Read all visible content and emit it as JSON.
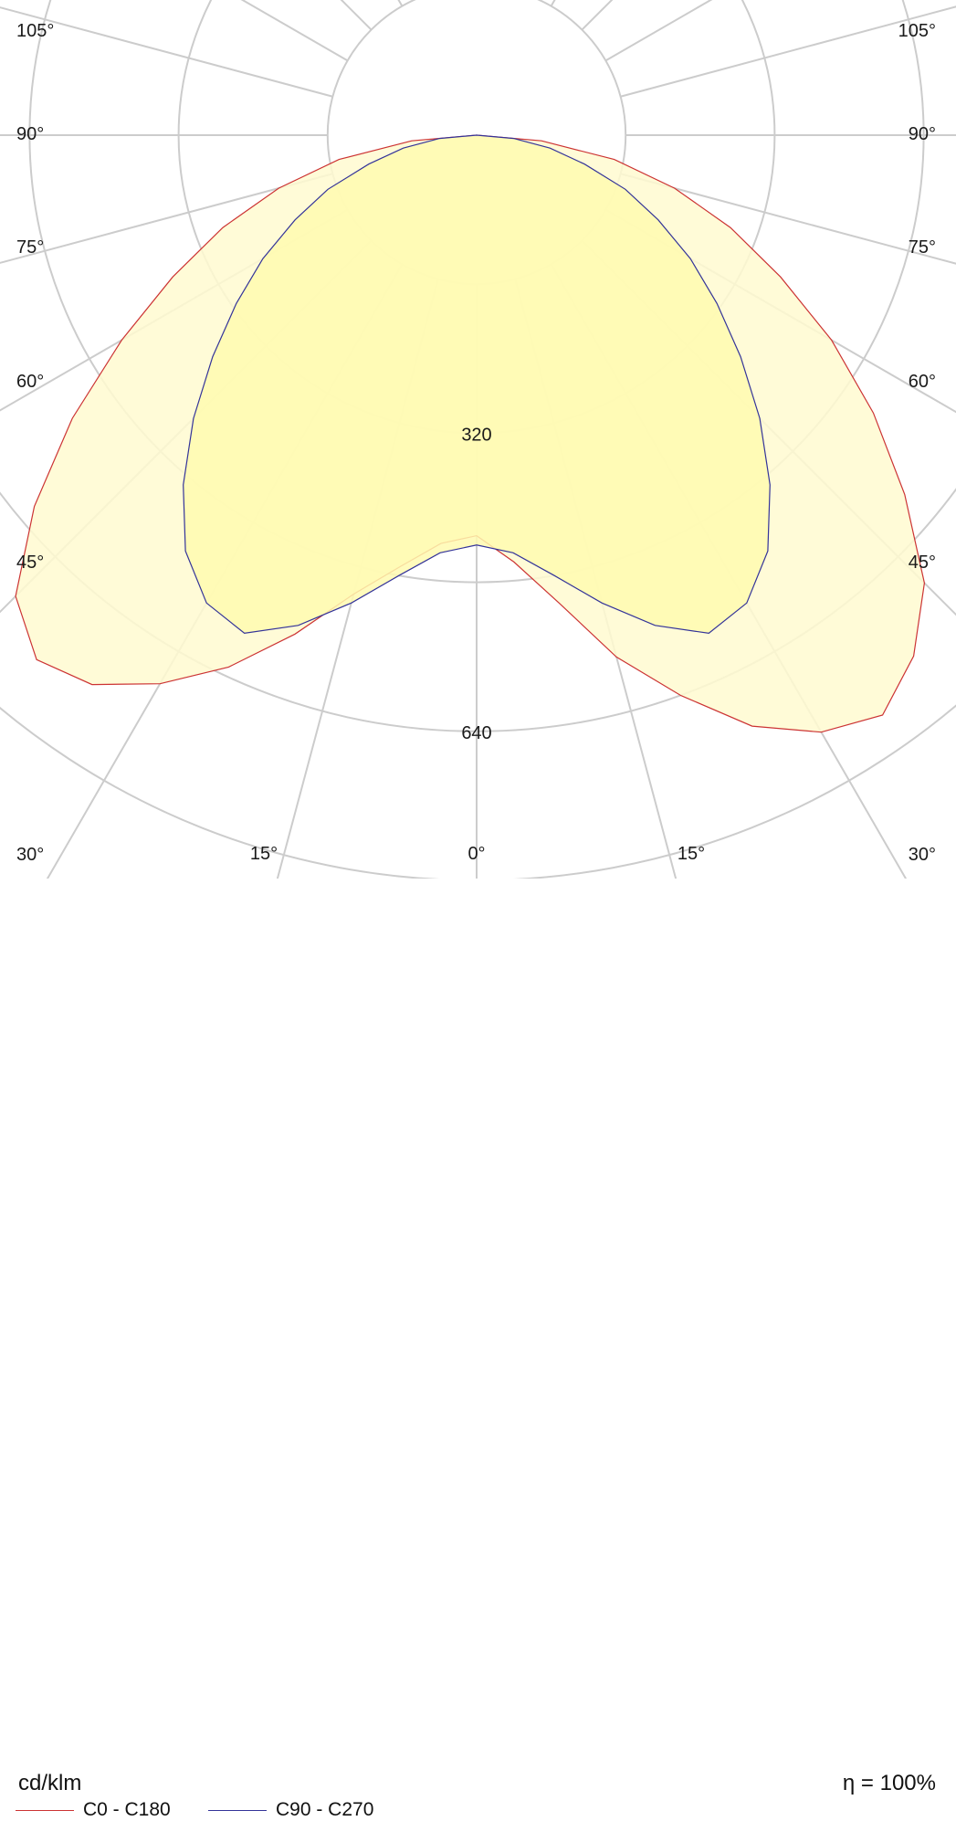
{
  "chart_data": {
    "type": "polar",
    "unit_label": "cd/klm",
    "efficiency_label": "η = 100%",
    "rings": [
      {
        "value": 160,
        "label": ""
      },
      {
        "value": 320,
        "label": "320"
      },
      {
        "value": 480,
        "label": ""
      },
      {
        "value": 640,
        "label": "640"
      },
      {
        "value": 800,
        "label": ""
      }
    ],
    "angle_labels": [
      {
        "angle": 105,
        "label": "105°"
      },
      {
        "angle": 90,
        "label": "90°"
      },
      {
        "angle": 75,
        "label": "75°"
      },
      {
        "angle": 60,
        "label": "60°"
      },
      {
        "angle": 45,
        "label": "45°"
      },
      {
        "angle": 30,
        "label": "30°"
      },
      {
        "angle": 15,
        "label": "15°"
      },
      {
        "angle": 0,
        "label": "0°"
      }
    ],
    "series": [
      {
        "name": "C0 - C180",
        "color": "#cc3333",
        "fill": "#fffad0",
        "angles": [
          0,
          5,
          10,
          15,
          20,
          25,
          30,
          35,
          40,
          45,
          50,
          55,
          60,
          65,
          70,
          75,
          80,
          85,
          90
        ],
        "values_left": [
          430,
          440,
          470,
          510,
          570,
          630,
          680,
          720,
          735,
          700,
          620,
          530,
          440,
          360,
          290,
          220,
          150,
          70,
          0
        ],
        "values_right": [
          430,
          460,
          510,
          580,
          640,
          700,
          740,
          760,
          730,
          680,
          600,
          520,
          440,
          360,
          290,
          220,
          150,
          70,
          0
        ]
      },
      {
        "name": "C90 - C270",
        "color": "#333399",
        "fill": "#fffab0",
        "angles": [
          0,
          5,
          10,
          15,
          20,
          25,
          30,
          35,
          40,
          45,
          50,
          55,
          60,
          65,
          70,
          75,
          80,
          85,
          90
        ],
        "values": [
          440,
          450,
          480,
          520,
          560,
          590,
          580,
          545,
          490,
          430,
          370,
          315,
          265,
          215,
          170,
          120,
          80,
          40,
          0
        ]
      }
    ]
  }
}
